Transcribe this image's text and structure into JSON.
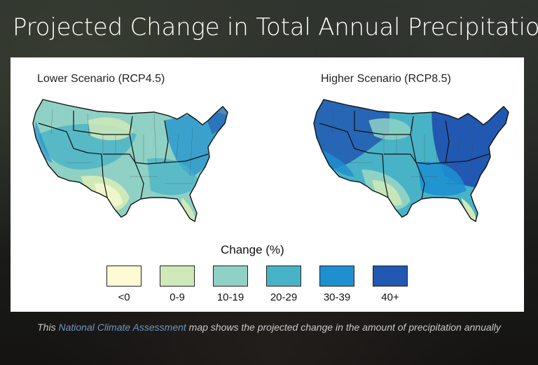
{
  "page": {
    "title": "Projected Change in Total Annual Precipitation"
  },
  "maps": {
    "lower": {
      "title": "Lower Scenario (RCP4.5)"
    },
    "higher": {
      "title": "Higher Scenario (RCP8.5)"
    }
  },
  "legend": {
    "title": "Change (%)",
    "items": [
      {
        "label": "<0",
        "color": "#fdfbd3"
      },
      {
        "label": "0-9",
        "color": "#cfe9b8"
      },
      {
        "label": "10-19",
        "color": "#8fd1c4"
      },
      {
        "label": "20-29",
        "color": "#48b3c7"
      },
      {
        "label": "30-39",
        "color": "#1e90d0"
      },
      {
        "label": "40+",
        "color": "#2158b2"
      }
    ]
  },
  "caption": {
    "prefix": "This ",
    "link": "National Climate Assessment",
    "suffix": " map shows the projected change in the amount of precipitation annually"
  }
}
